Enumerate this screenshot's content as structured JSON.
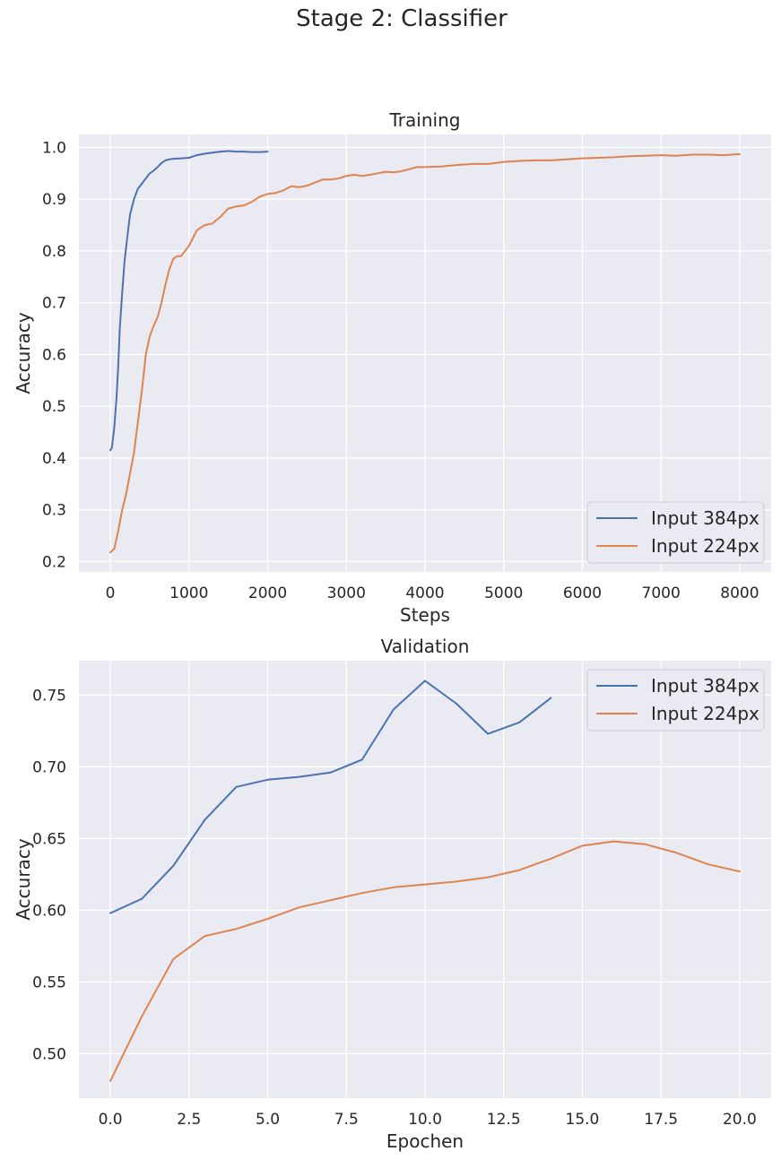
{
  "figure": {
    "suptitle": "Stage 2: Classifier"
  },
  "colors": {
    "series_384": "#4c72b0",
    "series_224": "#dd8452",
    "panel_bg": "#eaeaf2",
    "grid": "#ffffff"
  },
  "chart_data": [
    {
      "type": "line",
      "title": "Training",
      "xlabel": "Steps",
      "ylabel": "Accuracy",
      "xlim": [
        -400,
        8400
      ],
      "ylim": [
        0.18,
        1.025
      ],
      "xticks": [
        0,
        1000,
        2000,
        3000,
        4000,
        5000,
        6000,
        7000,
        8000
      ],
      "xtick_labels": [
        "0",
        "1000",
        "2000",
        "3000",
        "4000",
        "5000",
        "6000",
        "7000",
        "8000"
      ],
      "yticks": [
        0.2,
        0.3,
        0.4,
        0.5,
        0.6,
        0.7,
        0.8,
        0.9,
        1.0
      ],
      "ytick_labels": [
        "0.2",
        "0.3",
        "0.4",
        "0.5",
        "0.6",
        "0.7",
        "0.8",
        "0.9",
        "1.0"
      ],
      "grid": true,
      "legend_position": "lower-right",
      "series": [
        {
          "name": "Input 384px",
          "color": "#4c72b0",
          "x": [
            0,
            20,
            50,
            80,
            100,
            120,
            150,
            180,
            210,
            250,
            300,
            350,
            400,
            450,
            500,
            550,
            600,
            650,
            700,
            750,
            800,
            900,
            1000,
            1100,
            1200,
            1300,
            1400,
            1500,
            1600,
            1700,
            1800,
            1900,
            2000
          ],
          "y": [
            0.415,
            0.42,
            0.46,
            0.52,
            0.58,
            0.65,
            0.72,
            0.78,
            0.82,
            0.87,
            0.9,
            0.92,
            0.93,
            0.94,
            0.95,
            0.955,
            0.962,
            0.97,
            0.975,
            0.977,
            0.978,
            0.979,
            0.98,
            0.985,
            0.988,
            0.99,
            0.992,
            0.993,
            0.992,
            0.992,
            0.991,
            0.991,
            0.992
          ]
        },
        {
          "name": "Input 224px",
          "color": "#dd8452",
          "x": [
            0,
            50,
            100,
            150,
            200,
            250,
            300,
            350,
            400,
            450,
            500,
            550,
            600,
            650,
            700,
            750,
            800,
            850,
            900,
            1000,
            1100,
            1200,
            1300,
            1400,
            1500,
            1600,
            1700,
            1800,
            1900,
            2000,
            2100,
            2200,
            2300,
            2400,
            2500,
            2600,
            2700,
            2800,
            2900,
            3000,
            3100,
            3200,
            3300,
            3400,
            3500,
            3600,
            3700,
            3800,
            3900,
            4000,
            4200,
            4400,
            4600,
            4800,
            5000,
            5200,
            5400,
            5600,
            5800,
            6000,
            6200,
            6400,
            6600,
            6800,
            7000,
            7200,
            7400,
            7600,
            7800,
            8000
          ],
          "y": [
            0.218,
            0.225,
            0.26,
            0.3,
            0.33,
            0.37,
            0.41,
            0.47,
            0.53,
            0.6,
            0.635,
            0.655,
            0.672,
            0.7,
            0.735,
            0.765,
            0.785,
            0.79,
            0.79,
            0.81,
            0.84,
            0.85,
            0.853,
            0.866,
            0.882,
            0.886,
            0.888,
            0.895,
            0.905,
            0.91,
            0.912,
            0.917,
            0.925,
            0.923,
            0.926,
            0.932,
            0.938,
            0.938,
            0.94,
            0.945,
            0.947,
            0.945,
            0.947,
            0.95,
            0.953,
            0.952,
            0.954,
            0.958,
            0.962,
            0.962,
            0.963,
            0.966,
            0.968,
            0.968,
            0.972,
            0.974,
            0.975,
            0.975,
            0.977,
            0.979,
            0.98,
            0.981,
            0.983,
            0.984,
            0.985,
            0.984,
            0.986,
            0.986,
            0.985,
            0.987
          ]
        }
      ]
    },
    {
      "type": "line",
      "title": "Validation",
      "xlabel": "Epochen",
      "ylabel": "Accuracy",
      "xlim": [
        -1.0,
        21.0
      ],
      "ylim": [
        0.469,
        0.774
      ],
      "xticks": [
        0,
        2.5,
        5,
        7.5,
        10,
        12.5,
        15,
        17.5,
        20
      ],
      "xtick_labels": [
        "0.0",
        "2.5",
        "5.0",
        "7.5",
        "10.0",
        "12.5",
        "15.0",
        "17.5",
        "20.0"
      ],
      "yticks": [
        0.5,
        0.55,
        0.6,
        0.65,
        0.7,
        0.75
      ],
      "ytick_labels": [
        "0.50",
        "0.55",
        "0.60",
        "0.65",
        "0.70",
        "0.75"
      ],
      "grid": true,
      "legend_position": "upper-right",
      "series": [
        {
          "name": "Input 384px",
          "color": "#4c72b0",
          "x": [
            0,
            1,
            2,
            3,
            4,
            5,
            6,
            7,
            8,
            9,
            10,
            11,
            12,
            13,
            14
          ],
          "y": [
            0.598,
            0.608,
            0.631,
            0.663,
            0.686,
            0.691,
            0.693,
            0.696,
            0.705,
            0.74,
            0.76,
            0.744,
            0.723,
            0.731,
            0.748
          ]
        },
        {
          "name": "Input 224px",
          "color": "#dd8452",
          "x": [
            0,
            1,
            2,
            3,
            4,
            5,
            6,
            7,
            8,
            9,
            10,
            11,
            12,
            13,
            14,
            15,
            16,
            17,
            18,
            19,
            20
          ],
          "y": [
            0.481,
            0.526,
            0.566,
            0.582,
            0.587,
            0.594,
            0.602,
            0.607,
            0.612,
            0.616,
            0.618,
            0.62,
            0.623,
            0.628,
            0.636,
            0.645,
            0.648,
            0.646,
            0.64,
            0.632,
            0.627
          ]
        }
      ]
    }
  ]
}
